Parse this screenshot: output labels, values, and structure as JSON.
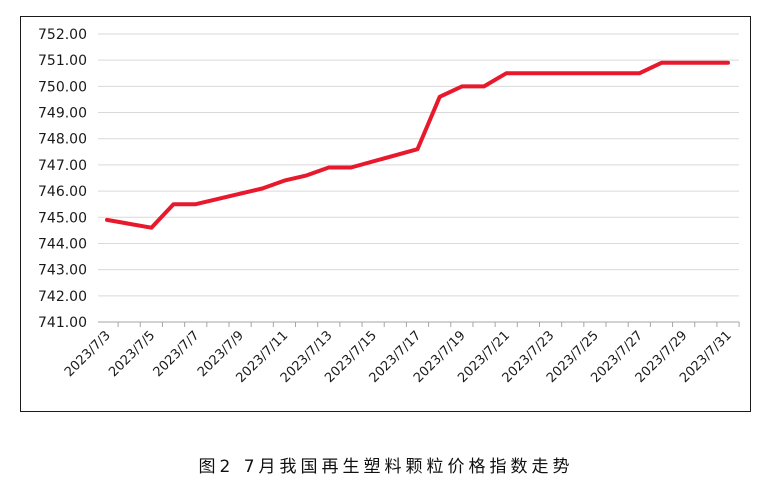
{
  "caption": "图2 7月我国再生塑料颗粒价格指数走势",
  "chart_data": {
    "type": "line",
    "title": "",
    "xlabel": "",
    "ylabel": "",
    "ylim": [
      741.0,
      752.0
    ],
    "yticks": [
      "741.00",
      "742.00",
      "743.00",
      "744.00",
      "745.00",
      "746.00",
      "747.00",
      "748.00",
      "749.00",
      "750.00",
      "751.00",
      "752.00"
    ],
    "xtick_labels": [
      "2023/7/3",
      "2023/7/5",
      "2023/7/7",
      "2023/7/9",
      "2023/7/11",
      "2023/7/13",
      "2023/7/15",
      "2023/7/17",
      "2023/7/19",
      "2023/7/21",
      "2023/7/23",
      "2023/7/25",
      "2023/7/27",
      "2023/7/29",
      "2023/7/31"
    ],
    "grid": "horizontal",
    "line_color": "#e8192c",
    "series": [
      {
        "x": [
          "2023/7/3",
          "2023/7/5",
          "2023/7/6",
          "2023/7/7",
          "2023/7/10",
          "2023/7/11",
          "2023/7/12",
          "2023/7/13",
          "2023/7/14",
          "2023/7/17",
          "2023/7/18",
          "2023/7/19",
          "2023/7/20",
          "2023/7/21",
          "2023/7/24",
          "2023/7/25",
          "2023/7/26",
          "2023/7/27",
          "2023/7/28",
          "2023/7/31"
        ],
        "values": [
          744.9,
          744.6,
          745.5,
          745.5,
          746.1,
          746.4,
          746.6,
          746.9,
          746.9,
          747.6,
          749.6,
          750.0,
          750.0,
          750.5,
          750.5,
          750.5,
          750.5,
          750.5,
          750.9,
          750.9
        ]
      }
    ]
  }
}
